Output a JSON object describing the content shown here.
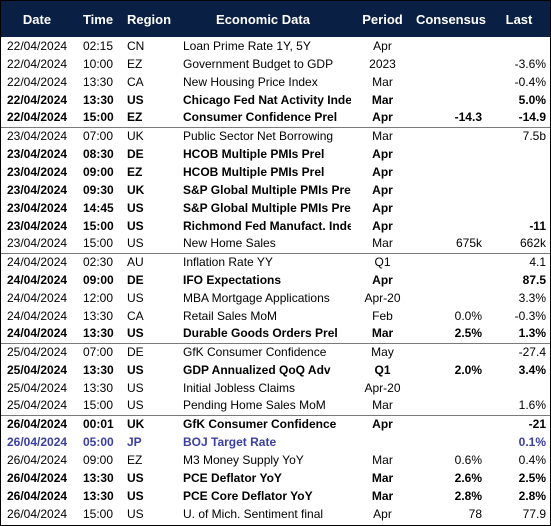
{
  "columns": {
    "date": "Date",
    "time": "Time",
    "region": "Region",
    "data": "Economic Data",
    "period": "Period",
    "consensus": "Consensus",
    "last": "Last"
  },
  "colors": {
    "header_bg": "#0a1f44",
    "header_text": "#ffffff",
    "highlight_text": "#3b3fa0"
  },
  "rows": [
    {
      "date": "22/04/2024",
      "time": "02:15",
      "region": "CN",
      "data": "Loan Prime Rate 1Y, 5Y",
      "period": "Apr",
      "consensus": "",
      "last": "",
      "bold": false
    },
    {
      "date": "22/04/2024",
      "time": "10:00",
      "region": "EZ",
      "data": "Government Budget to GDP",
      "period": "2023",
      "consensus": "",
      "last": "-3.6%",
      "bold": false
    },
    {
      "date": "22/04/2024",
      "time": "13:30",
      "region": "CA",
      "data": "New Housing Price Index",
      "period": "Mar",
      "consensus": "",
      "last": "-0.4%",
      "bold": false
    },
    {
      "date": "22/04/2024",
      "time": "13:30",
      "region": "US",
      "data": "Chicago Fed Nat Activity Inde",
      "period": "Mar",
      "consensus": "",
      "last": "5.0%",
      "bold": true
    },
    {
      "date": "22/04/2024",
      "time": "15:00",
      "region": "EZ",
      "data": "Consumer Confidence Prel",
      "period": "Apr",
      "consensus": "-14.3",
      "last": "-14.9",
      "bold": true
    },
    {
      "date": "23/04/2024",
      "time": "07:00",
      "region": "UK",
      "data": "Public Sector Net Borrowing",
      "period": "Mar",
      "consensus": "",
      "last": "7.5b",
      "bold": false,
      "sep": true
    },
    {
      "date": "23/04/2024",
      "time": "08:30",
      "region": "DE",
      "data": "HCOB Multiple PMIs Prel",
      "period": "Apr",
      "consensus": "",
      "last": "",
      "bold": true
    },
    {
      "date": "23/04/2024",
      "time": "09:00",
      "region": "EZ",
      "data": "HCOB Multiple PMIs Prel",
      "period": "Apr",
      "consensus": "",
      "last": "",
      "bold": true
    },
    {
      "date": "23/04/2024",
      "time": "09:30",
      "region": "UK",
      "data": "S&P Global Multiple PMIs Pre",
      "period": "Apr",
      "consensus": "",
      "last": "",
      "bold": true
    },
    {
      "date": "23/04/2024",
      "time": "14:45",
      "region": "US",
      "data": "S&P Global Multiple PMIs Pre",
      "period": "Apr",
      "consensus": "",
      "last": "",
      "bold": true
    },
    {
      "date": "23/04/2024",
      "time": "15:00",
      "region": "US",
      "data": "Richmond Fed Manufact. Inde",
      "period": "Apr",
      "consensus": "",
      "last": "-11",
      "bold": true
    },
    {
      "date": "23/04/2024",
      "time": "15:00",
      "region": "US",
      "data": "New Home Sales",
      "period": "Mar",
      "consensus": "675k",
      "last": "662k",
      "bold": false
    },
    {
      "date": "24/04/2024",
      "time": "02:30",
      "region": "AU",
      "data": "Inflation Rate YY",
      "period": "Q1",
      "consensus": "",
      "last": "4.1",
      "bold": false,
      "sep": true
    },
    {
      "date": "24/04/2024",
      "time": "09:00",
      "region": "DE",
      "data": "IFO Expectations",
      "period": "Apr",
      "consensus": "",
      "last": "87.5",
      "bold": true
    },
    {
      "date": "24/04/2024",
      "time": "12:00",
      "region": "US",
      "data": "MBA Mortgage Applications",
      "period": "Apr-20",
      "consensus": "",
      "last": "3.3%",
      "bold": false
    },
    {
      "date": "24/04/2024",
      "time": "13:30",
      "region": "CA",
      "data": "Retail Sales MoM",
      "period": "Feb",
      "consensus": "0.0%",
      "last": "-0.3%",
      "bold": false
    },
    {
      "date": "24/04/2024",
      "time": "13:30",
      "region": "US",
      "data": "Durable Goods Orders Prel",
      "period": "Mar",
      "consensus": "2.5%",
      "last": "1.3%",
      "bold": true
    },
    {
      "date": "25/04/2024",
      "time": "07:00",
      "region": "DE",
      "data": "GfK Consumer Confidence",
      "period": "May",
      "consensus": "",
      "last": "-27.4",
      "bold": false,
      "sep": true
    },
    {
      "date": "25/04/2024",
      "time": "13:30",
      "region": "US",
      "data": "GDP Annualized QoQ Adv",
      "period": "Q1",
      "consensus": "2.0%",
      "last": "3.4%",
      "bold": true
    },
    {
      "date": "25/04/2024",
      "time": "13:30",
      "region": "US",
      "data": "Initial Jobless Claims",
      "period": "Apr-20",
      "consensus": "",
      "last": "",
      "bold": false
    },
    {
      "date": "25/04/2024",
      "time": "15:00",
      "region": "US",
      "data": "Pending Home Sales MoM",
      "period": "Mar",
      "consensus": "",
      "last": "1.6%",
      "bold": false
    },
    {
      "date": "26/04/2024",
      "time": "00:01",
      "region": "UK",
      "data": "GfK Consumer Confidence",
      "period": "Apr",
      "consensus": "",
      "last": "-21",
      "bold": true,
      "sep": true
    },
    {
      "date": "26/04/2024",
      "time": "05:00",
      "region": "JP",
      "data": "BOJ Target Rate",
      "period": "",
      "consensus": "",
      "last": "0.1%",
      "bold": true,
      "highlight": true
    },
    {
      "date": "26/04/2024",
      "time": "09:00",
      "region": "EZ",
      "data": "M3 Money Supply YoY",
      "period": "Mar",
      "consensus": "0.6%",
      "last": "0.4%",
      "bold": false
    },
    {
      "date": "26/04/2024",
      "time": "13:30",
      "region": "US",
      "data": "PCE Deflator YoY",
      "period": "Mar",
      "consensus": "2.6%",
      "last": "2.5%",
      "bold": true
    },
    {
      "date": "26/04/2024",
      "time": "13:30",
      "region": "US",
      "data": "PCE Core Deflator YoY",
      "period": "Mar",
      "consensus": "2.8%",
      "last": "2.8%",
      "bold": true
    },
    {
      "date": "26/04/2024",
      "time": "15:00",
      "region": "US",
      "data": "U. of Mich. Sentiment final",
      "period": "Apr",
      "consensus": "78",
      "last": "77.9",
      "bold": false
    }
  ]
}
